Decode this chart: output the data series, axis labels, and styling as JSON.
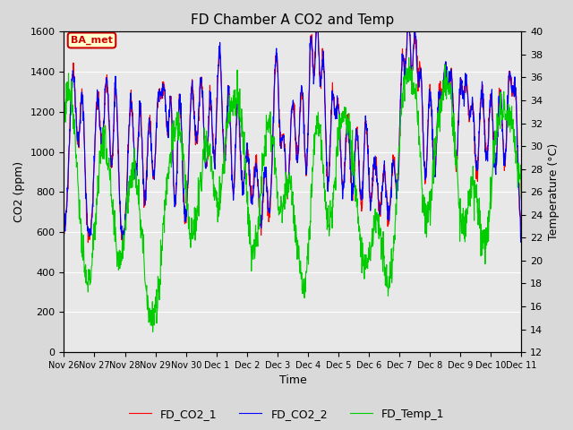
{
  "title": "FD Chamber A CO2 and Temp",
  "xlabel": "Time",
  "ylabel_left": "CO2 (ppm)",
  "ylabel_right": "Temperature (°C)",
  "ylim_left": [
    0,
    1600
  ],
  "ylim_right": [
    12,
    40
  ],
  "yticks_left": [
    0,
    200,
    400,
    600,
    800,
    1000,
    1200,
    1400,
    1600
  ],
  "yticks_right": [
    12,
    14,
    16,
    18,
    20,
    22,
    24,
    26,
    28,
    30,
    32,
    34,
    36,
    38,
    40
  ],
  "xtick_labels": [
    "Nov 26",
    "Nov 27",
    "Nov 28",
    "Nov 29",
    "Nov 30",
    "Dec 1",
    "Dec 2",
    "Dec 3",
    "Dec 4",
    "Dec 5",
    "Dec 6",
    "Dec 7",
    "Dec 8",
    "Dec 9",
    "Dec 10",
    "Dec 11"
  ],
  "color_co2_1": "#ff0000",
  "color_co2_2": "#0000ff",
  "color_temp_1": "#00cc00",
  "legend_label_1": "FD_CO2_1",
  "legend_label_2": "FD_CO2_2",
  "legend_label_3": "FD_Temp_1",
  "annotation_text": "BA_met",
  "annotation_color": "#cc0000",
  "annotation_bg": "#ffffcc",
  "background_color": "#d9d9d9",
  "plot_bg_color": "#e8e8e8",
  "linewidth": 0.8,
  "title_fontsize": 11,
  "axis_fontsize": 9,
  "tick_fontsize": 8
}
